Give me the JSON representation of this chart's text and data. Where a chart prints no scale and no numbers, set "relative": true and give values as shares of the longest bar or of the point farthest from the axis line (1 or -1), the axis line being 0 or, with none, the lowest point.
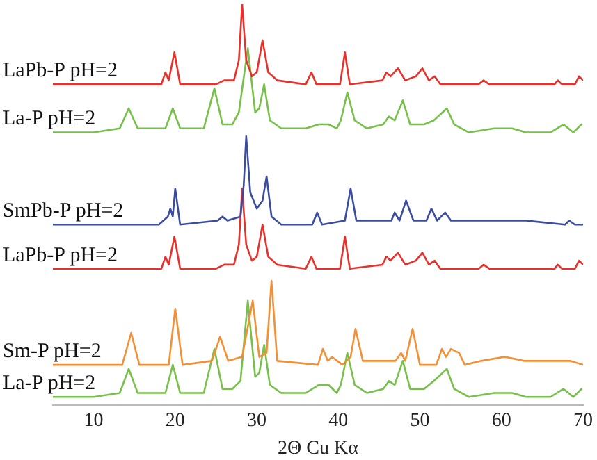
{
  "chart_data": {
    "type": "line",
    "relative": true,
    "xlabel": "2Θ Cu Kα",
    "xlim": [
      5,
      70
    ],
    "xticks": [
      10,
      20,
      30,
      40,
      50,
      60,
      70
    ],
    "grid": false,
    "legend": false,
    "marker": "none",
    "line_style": "solid",
    "series": [
      {
        "name": "LaPb-P pH=2",
        "color": "#e8312a",
        "x": [
          5,
          15,
          18.3,
          18.8,
          19.2,
          19.9,
          20.6,
          25,
          26,
          27.2,
          27.8,
          28.2,
          28.7,
          29.4,
          30,
          30.7,
          31.4,
          32.5,
          36,
          36.7,
          37.3,
          40.2,
          40.8,
          41.4,
          45.4,
          45.9,
          46.4,
          47.3,
          48.2,
          49.5,
          50.3,
          51.1,
          51.8,
          52.5,
          57.2,
          57.8,
          58.5,
          66.5,
          66.9,
          67.4,
          69,
          69.5,
          70
        ],
        "values": [
          0.8,
          0.8,
          0.8,
          0.83,
          0.81,
          0.88,
          0.8,
          0.8,
          0.81,
          0.81,
          0.86,
          1.0,
          0.86,
          0.82,
          0.83,
          0.91,
          0.83,
          0.81,
          0.8,
          0.83,
          0.8,
          0.8,
          0.88,
          0.8,
          0.81,
          0.83,
          0.82,
          0.84,
          0.81,
          0.82,
          0.84,
          0.81,
          0.82,
          0.8,
          0.8,
          0.81,
          0.8,
          0.8,
          0.81,
          0.8,
          0.8,
          0.82,
          0.81
        ]
      },
      {
        "name": "La-P pH=2",
        "color": "#77c04a",
        "x": [
          5,
          10,
          13.2,
          14.3,
          15.4,
          18.8,
          19.7,
          20.6,
          23.5,
          24.8,
          25.8,
          27,
          27.8,
          28.9,
          29.8,
          30.3,
          30.9,
          31.6,
          33,
          36,
          37.6,
          38.8,
          39.8,
          40.3,
          41.1,
          42,
          43.5,
          45.5,
          46.2,
          46.9,
          47.9,
          48.8,
          50.5,
          51.7,
          53.3,
          54.2,
          56,
          59.1,
          61.3,
          63,
          66,
          67.6,
          68.8,
          69.8
        ],
        "values": [
          0.68,
          0.68,
          0.69,
          0.74,
          0.69,
          0.69,
          0.74,
          0.69,
          0.69,
          0.79,
          0.7,
          0.7,
          0.73,
          0.89,
          0.73,
          0.74,
          0.8,
          0.71,
          0.69,
          0.69,
          0.7,
          0.7,
          0.69,
          0.71,
          0.78,
          0.71,
          0.69,
          0.7,
          0.72,
          0.71,
          0.76,
          0.7,
          0.7,
          0.71,
          0.74,
          0.7,
          0.68,
          0.69,
          0.69,
          0.68,
          0.68,
          0.7,
          0.68,
          0.7
        ]
      },
      {
        "name": "SmPb-P pH=2",
        "color": "#3a4ca0",
        "x": [
          5,
          18,
          19.1,
          19.4,
          19.7,
          20,
          20.6,
          25.2,
          25.8,
          26.4,
          28,
          28.4,
          28.7,
          29.2,
          30,
          30.7,
          31.2,
          31.8,
          33,
          36.8,
          37.4,
          38,
          40.8,
          41.5,
          42.2,
          46.5,
          46.9,
          47.5,
          48.3,
          49.2,
          50.8,
          51.4,
          52.1,
          53.1,
          53.8,
          54.6,
          58.8,
          63,
          67.8,
          68.3,
          69,
          70
        ],
        "values": [
          0.45,
          0.45,
          0.47,
          0.49,
          0.47,
          0.54,
          0.45,
          0.46,
          0.47,
          0.46,
          0.47,
          0.55,
          0.67,
          0.53,
          0.49,
          0.51,
          0.57,
          0.47,
          0.45,
          0.45,
          0.48,
          0.45,
          0.46,
          0.54,
          0.46,
          0.46,
          0.48,
          0.46,
          0.51,
          0.46,
          0.46,
          0.49,
          0.46,
          0.48,
          0.46,
          0.46,
          0.46,
          0.46,
          0.45,
          0.46,
          0.45,
          0.45
        ]
      },
      {
        "name": "LaPb-P pH=2",
        "color": "#e8312a",
        "x": [
          5,
          15,
          18.3,
          18.8,
          19.2,
          19.9,
          20.6,
          25,
          26,
          27.2,
          27.8,
          28.2,
          28.7,
          29.4,
          30,
          30.7,
          31.4,
          32.5,
          36,
          36.7,
          37.3,
          40.2,
          40.8,
          41.4,
          45.4,
          45.9,
          46.4,
          47.3,
          48.2,
          49.5,
          50.3,
          51.1,
          51.8,
          52.5,
          57.2,
          57.8,
          58.5,
          66.5,
          66.9,
          67.4,
          69,
          69.5,
          70
        ],
        "values": [
          0.34,
          0.34,
          0.34,
          0.37,
          0.35,
          0.42,
          0.34,
          0.34,
          0.35,
          0.35,
          0.4,
          0.54,
          0.4,
          0.36,
          0.37,
          0.45,
          0.37,
          0.35,
          0.34,
          0.37,
          0.34,
          0.34,
          0.42,
          0.34,
          0.35,
          0.37,
          0.36,
          0.38,
          0.35,
          0.36,
          0.38,
          0.35,
          0.36,
          0.34,
          0.34,
          0.35,
          0.34,
          0.34,
          0.35,
          0.34,
          0.34,
          0.36,
          0.35
        ]
      },
      {
        "name": "Sm-P pH=2",
        "color": "#f39035",
        "x": [
          5,
          13.5,
          14.6,
          15.6,
          19.2,
          20,
          20.9,
          24.5,
          25.5,
          26.5,
          28.2,
          29.5,
          30.3,
          31.2,
          31.8,
          32.5,
          37.5,
          38.1,
          38.7,
          39.2,
          40.5,
          41.5,
          42.1,
          43,
          47,
          47.7,
          48.2,
          49.1,
          50,
          52,
          52.7,
          53.2,
          53.8,
          54.8,
          55.5,
          57.5,
          60.4,
          62.8,
          64.6,
          68.4,
          70
        ],
        "values": [
          0.1,
          0.1,
          0.18,
          0.1,
          0.1,
          0.24,
          0.1,
          0.11,
          0.17,
          0.11,
          0.12,
          0.26,
          0.12,
          0.13,
          0.31,
          0.11,
          0.1,
          0.14,
          0.11,
          0.12,
          0.1,
          0.12,
          0.19,
          0.11,
          0.11,
          0.13,
          0.11,
          0.19,
          0.1,
          0.1,
          0.14,
          0.12,
          0.14,
          0.13,
          0.1,
          0.11,
          0.12,
          0.11,
          0.11,
          0.11,
          0.1
        ]
      },
      {
        "name": "La-P pH=2",
        "color": "#77c04a",
        "x": [
          5,
          10,
          13.2,
          14.3,
          15.4,
          18.8,
          19.7,
          20.6,
          23.5,
          24.8,
          25.8,
          27,
          28,
          28.9,
          29.8,
          30.3,
          30.9,
          31.6,
          33,
          36,
          37.6,
          38.8,
          39.8,
          40.3,
          41.1,
          42,
          43.5,
          45.5,
          46.2,
          46.9,
          47.9,
          48.8,
          50.5,
          51.7,
          53.3,
          54.2,
          56,
          59.1,
          61.3,
          63,
          66,
          67.6,
          68.8,
          69.8
        ],
        "values": [
          0.02,
          0.02,
          0.03,
          0.09,
          0.03,
          0.03,
          0.1,
          0.03,
          0.03,
          0.14,
          0.04,
          0.04,
          0.06,
          0.26,
          0.07,
          0.08,
          0.15,
          0.05,
          0.03,
          0.03,
          0.05,
          0.05,
          0.03,
          0.05,
          0.13,
          0.05,
          0.03,
          0.04,
          0.06,
          0.05,
          0.11,
          0.04,
          0.04,
          0.06,
          0.09,
          0.04,
          0.02,
          0.03,
          0.03,
          0.02,
          0.02,
          0.04,
          0.02,
          0.04
        ]
      }
    ]
  }
}
